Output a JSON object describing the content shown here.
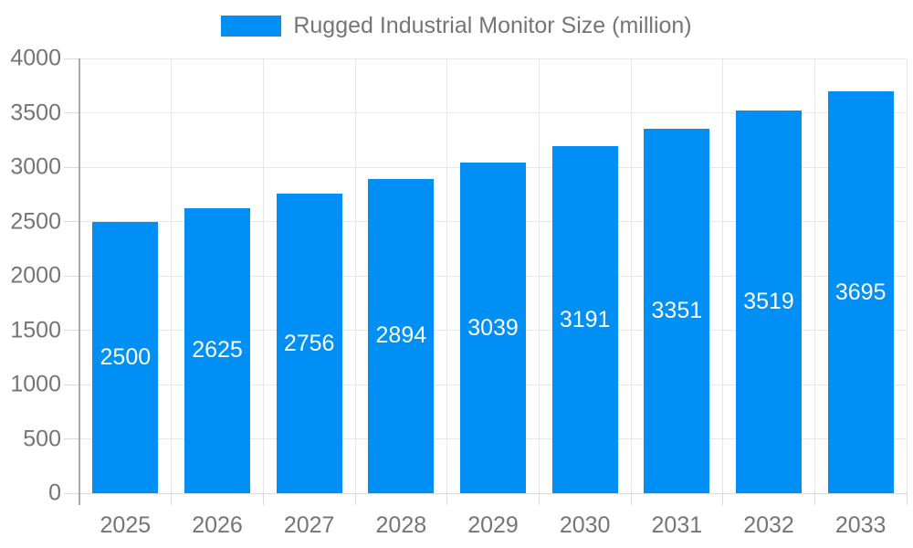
{
  "legend": {
    "label": "Rugged Industrial Monitor Size (million)"
  },
  "colors": {
    "bar": "#008ff5",
    "grid": "#e7e7e7",
    "axis_line": "#a8a8a8",
    "tick": "#d9d9d9",
    "tick_label": "#757575",
    "value_label": "#ffffff",
    "background": "#ffffff"
  },
  "chart_data": {
    "type": "bar",
    "title": "Rugged Industrial Monitor Size (million)",
    "categories": [
      "2025",
      "2026",
      "2027",
      "2028",
      "2029",
      "2030",
      "2031",
      "2032",
      "2033"
    ],
    "values": [
      2500,
      2625,
      2756,
      2894,
      3039,
      3191,
      3351,
      3519,
      3695
    ],
    "xlabel": "",
    "ylabel": "",
    "ylim": [
      0,
      4000
    ],
    "ytick_step": 500,
    "yticks": [
      0,
      500,
      1000,
      1500,
      2000,
      2500,
      3000,
      3500,
      4000
    ],
    "grid": true,
    "legend_position": "top-center",
    "value_labels": "inside-middle",
    "series": [
      {
        "name": "Rugged Industrial Monitor Size (million)",
        "values": [
          2500,
          2625,
          2756,
          2894,
          3039,
          3191,
          3351,
          3519,
          3695
        ]
      }
    ]
  }
}
